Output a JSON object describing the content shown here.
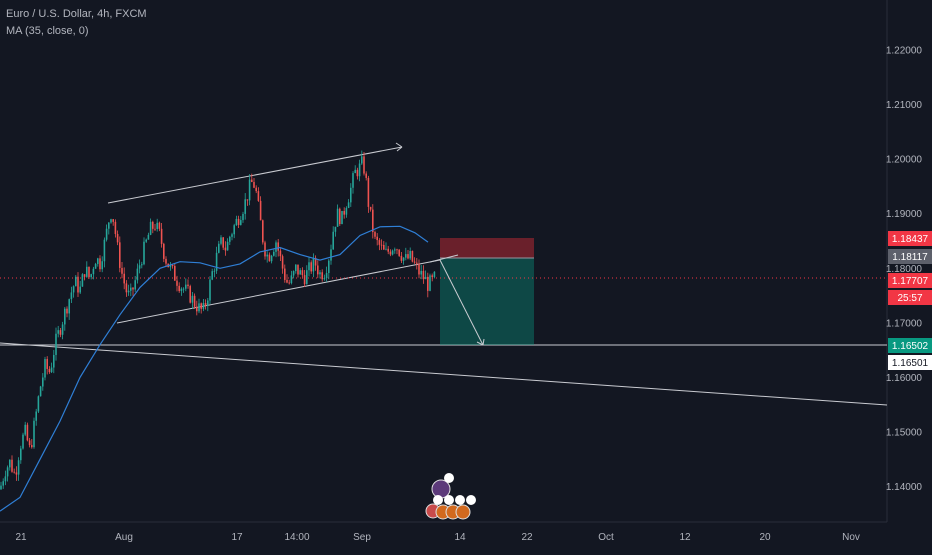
{
  "header": {
    "title": "Euro / U.S. Dollar, 4h, FXCM",
    "indicator": "MA (35, close, 0)"
  },
  "chart_data": {
    "type": "candlestick",
    "symbol": "Euro / U.S. Dollar",
    "timeframe": "4h",
    "source": "FXCM",
    "x_ticks": [
      "21",
      "Aug",
      "17",
      "14:00",
      "Sep",
      "14",
      "22",
      "Oct",
      "12",
      "20",
      "Nov"
    ],
    "y_ticks": [
      "1.22000",
      "1.21000",
      "1.20000",
      "1.19000",
      "1.18000",
      "1.17000",
      "1.16000",
      "1.15000",
      "1.14000"
    ],
    "ylim": [
      1.1335,
      1.2277
    ],
    "price_labels": {
      "stop": "1.18437",
      "entry": "1.18117",
      "last": "1.17707",
      "countdown": "25:57",
      "target": "1.16502",
      "horizontal_line": "1.16501"
    },
    "price_path": [
      [
        0,
        1.1395
      ],
      [
        5,
        1.143
      ],
      [
        10,
        1.1445
      ],
      [
        15,
        1.142
      ],
      [
        20,
        1.1475
      ],
      [
        25,
        1.15
      ],
      [
        30,
        1.1465
      ],
      [
        35,
        1.152
      ],
      [
        40,
        1.158
      ],
      [
        45,
        1.162
      ],
      [
        50,
        1.161
      ],
      [
        55,
        1.166
      ],
      [
        60,
        1.169
      ],
      [
        65,
        1.172
      ],
      [
        70,
        1.175
      ],
      [
        75,
        1.1775
      ],
      [
        80,
        1.176
      ],
      [
        85,
        1.18
      ],
      [
        90,
        1.178
      ],
      [
        95,
        1.182
      ],
      [
        100,
        1.181
      ],
      [
        105,
        1.185
      ],
      [
        110,
        1.19
      ],
      [
        112,
        1.1905
      ],
      [
        115,
        1.187
      ],
      [
        118,
        1.183
      ],
      [
        122,
        1.179
      ],
      [
        126,
        1.176
      ],
      [
        130,
        1.1745
      ],
      [
        135,
        1.1775
      ],
      [
        140,
        1.181
      ],
      [
        145,
        1.184
      ],
      [
        150,
        1.187
      ],
      [
        155,
        1.188
      ],
      [
        160,
        1.186
      ],
      [
        165,
        1.182
      ],
      [
        170,
        1.18
      ],
      [
        175,
        1.1785
      ],
      [
        180,
        1.177
      ],
      [
        185,
        1.176
      ],
      [
        190,
        1.175
      ],
      [
        195,
        1.1735
      ],
      [
        200,
        1.1725
      ],
      [
        203,
        1.172
      ],
      [
        207,
        1.1745
      ],
      [
        212,
        1.179
      ],
      [
        218,
        1.183
      ],
      [
        222,
        1.185
      ],
      [
        226,
        1.1835
      ],
      [
        230,
        1.186
      ],
      [
        235,
        1.188
      ],
      [
        240,
        1.19
      ],
      [
        245,
        1.192
      ],
      [
        250,
        1.195
      ],
      [
        253,
        1.196
      ],
      [
        256,
        1.194
      ],
      [
        260,
        1.189
      ],
      [
        264,
        1.184
      ],
      [
        268,
        1.182
      ],
      [
        272,
        1.1835
      ],
      [
        276,
        1.185
      ],
      [
        280,
        1.182
      ],
      [
        284,
        1.179
      ],
      [
        288,
        1.177
      ],
      [
        292,
        1.178
      ],
      [
        296,
        1.18
      ],
      [
        300,
        1.179
      ],
      [
        305,
        1.1785
      ],
      [
        310,
        1.18
      ],
      [
        315,
        1.181
      ],
      [
        320,
        1.179
      ],
      [
        325,
        1.1795
      ],
      [
        330,
        1.183
      ],
      [
        334,
        1.188
      ],
      [
        338,
        1.19
      ],
      [
        342,
        1.189
      ],
      [
        346,
        1.192
      ],
      [
        350,
        1.194
      ],
      [
        355,
        1.1975
      ],
      [
        360,
        1.1985
      ],
      [
        363,
        1.1995
      ],
      [
        366,
        1.196
      ],
      [
        369,
        1.191
      ],
      [
        372,
        1.188
      ],
      [
        375,
        1.185
      ],
      [
        380,
        1.184
      ],
      [
        385,
        1.1825
      ],
      [
        390,
        1.1835
      ],
      [
        395,
        1.1845
      ],
      [
        400,
        1.183
      ],
      [
        405,
        1.1815
      ],
      [
        410,
        1.182
      ],
      [
        415,
        1.1805
      ],
      [
        420,
        1.179
      ],
      [
        425,
        1.178
      ],
      [
        428,
        1.177
      ],
      [
        432,
        1.1775
      ],
      [
        436,
        1.1785
      ]
    ],
    "ma_path": [
      [
        0,
        1.1355
      ],
      [
        20,
        1.138
      ],
      [
        40,
        1.145
      ],
      [
        60,
        1.152
      ],
      [
        80,
        1.16
      ],
      [
        100,
        1.166
      ],
      [
        120,
        1.1715
      ],
      [
        140,
        1.1765
      ],
      [
        160,
        1.18
      ],
      [
        180,
        1.1812
      ],
      [
        200,
        1.181
      ],
      [
        220,
        1.18
      ],
      [
        240,
        1.1808
      ],
      [
        260,
        1.183
      ],
      [
        280,
        1.1838
      ],
      [
        300,
        1.1825
      ],
      [
        320,
        1.1815
      ],
      [
        340,
        1.1825
      ],
      [
        360,
        1.186
      ],
      [
        380,
        1.1876
      ],
      [
        400,
        1.1877
      ],
      [
        415,
        1.1865
      ],
      [
        428,
        1.1848
      ]
    ]
  }
}
